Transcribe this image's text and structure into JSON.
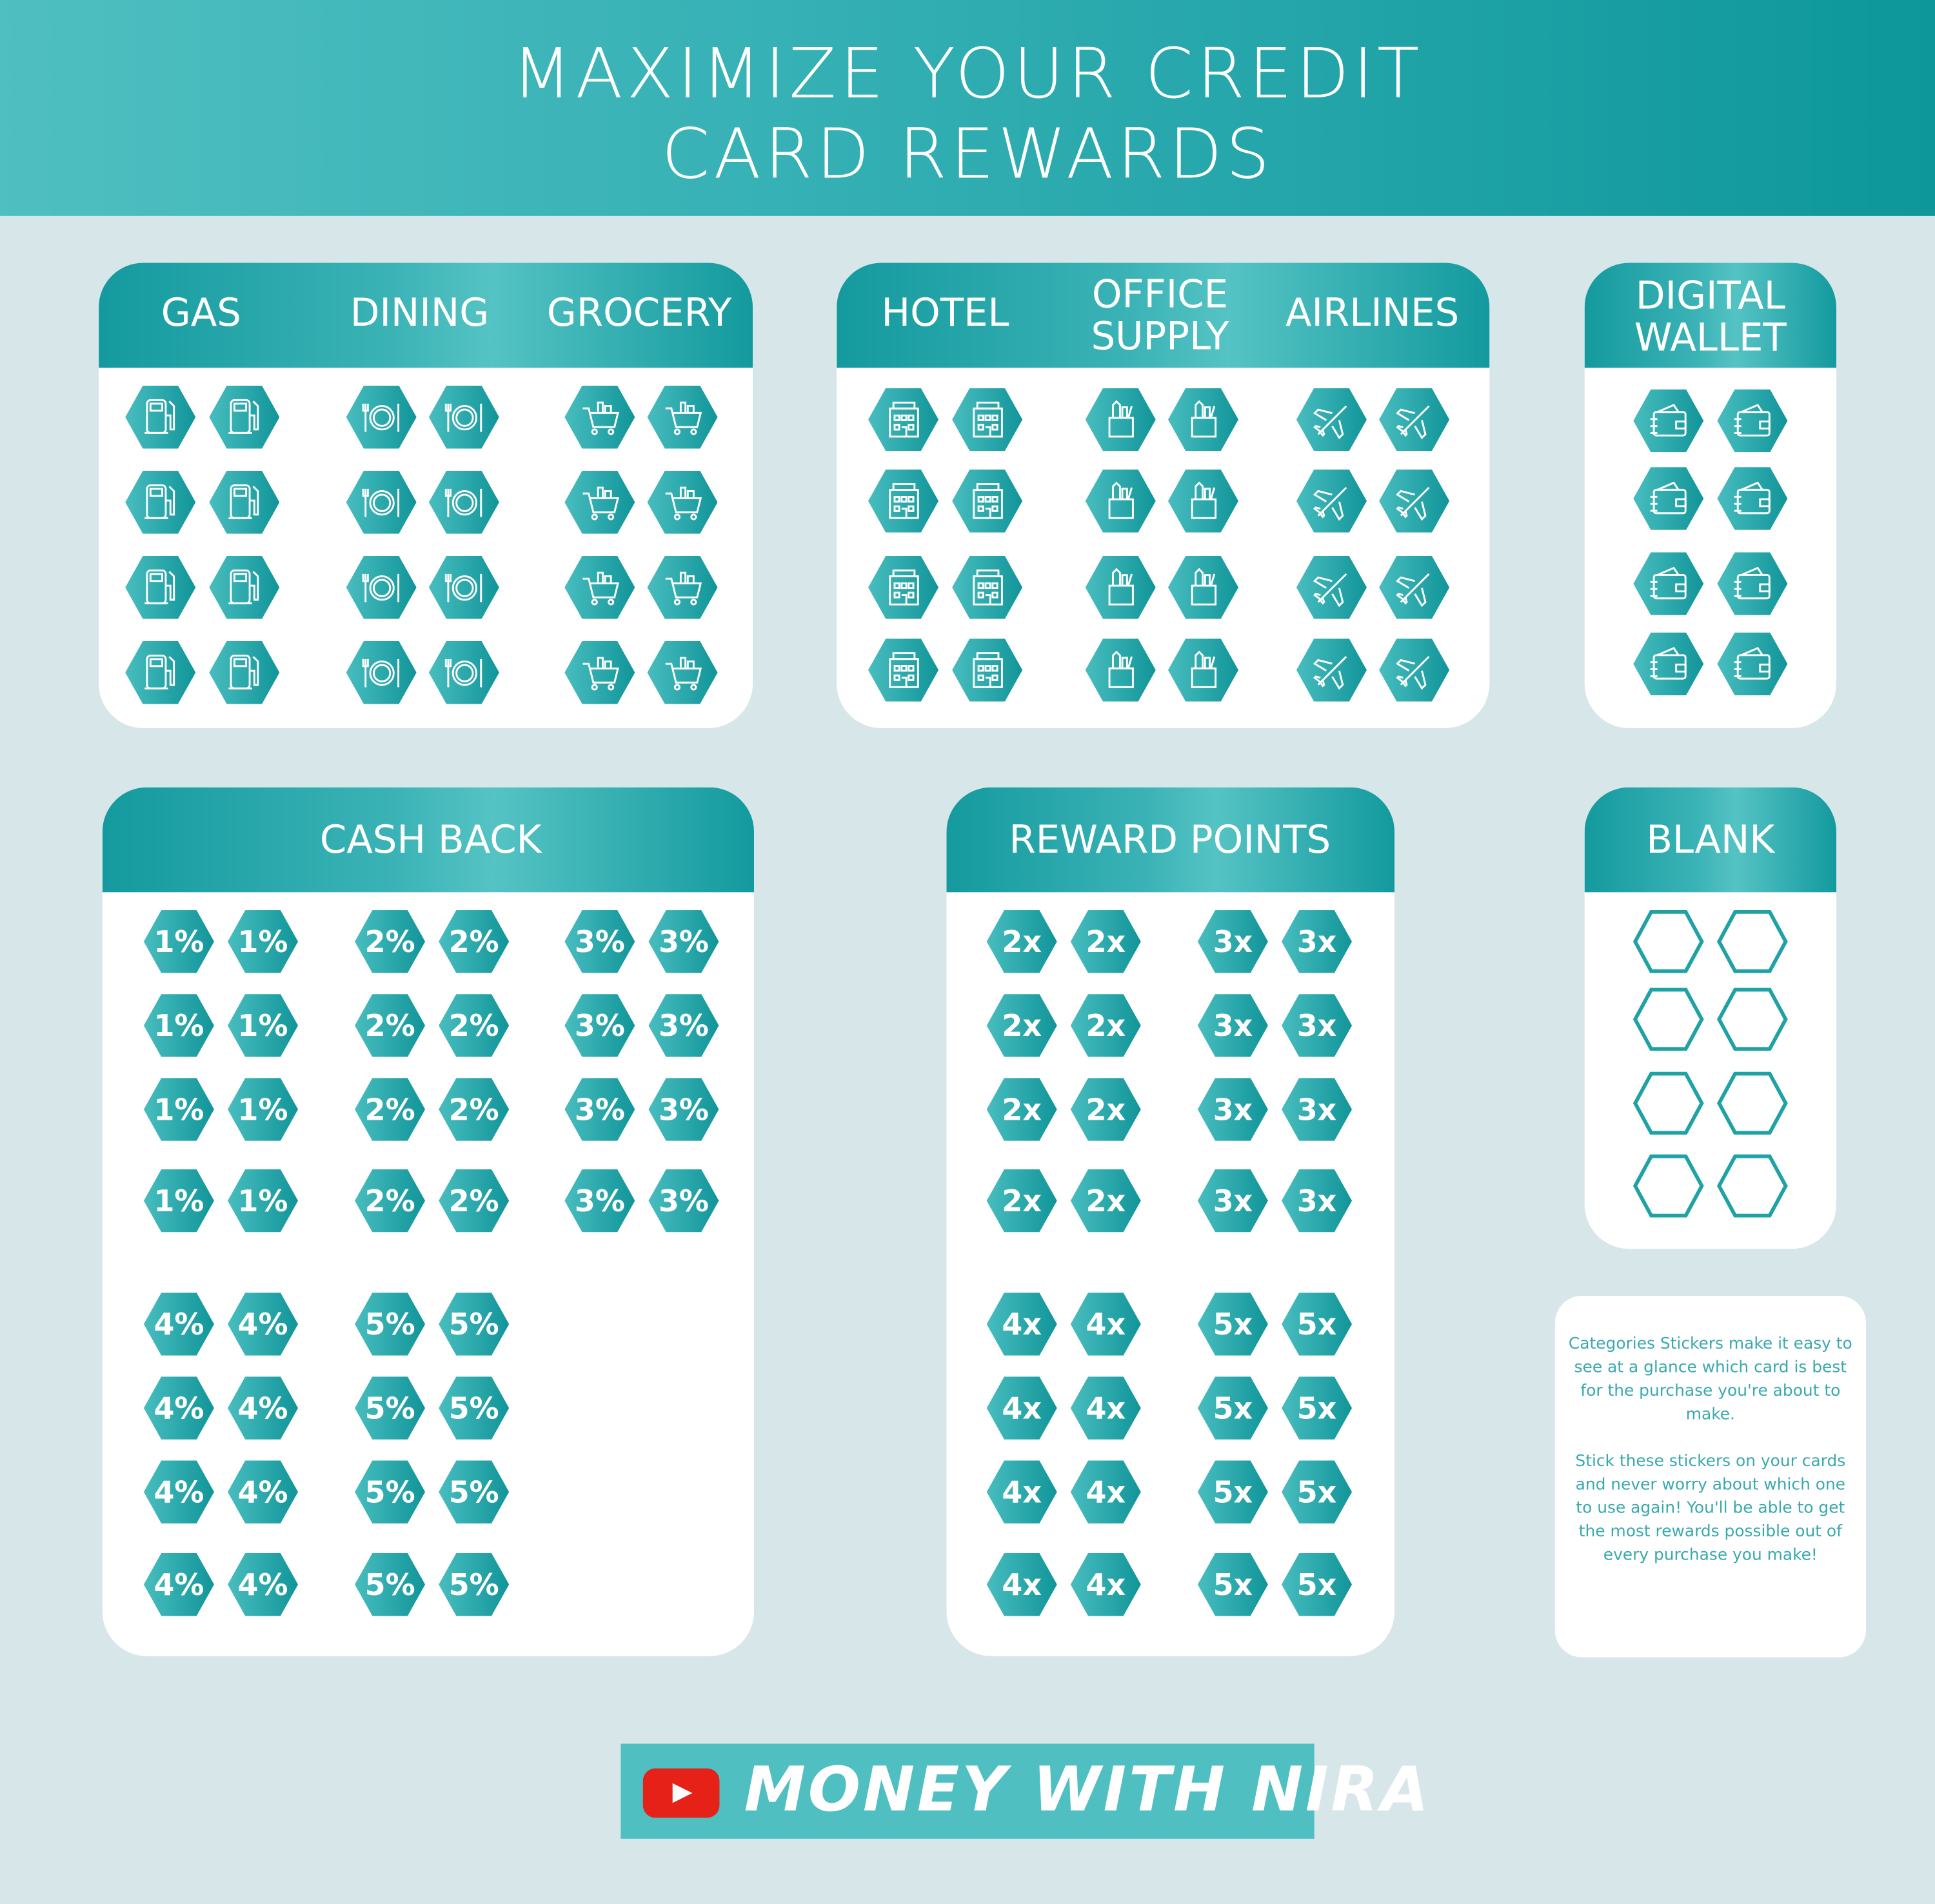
{
  "title": {
    "line1": "MAXIMIZE YOUR CREDIT",
    "line2": "CARD REWARDS"
  },
  "colors": {
    "teal": "#139a9e",
    "teal_light": "#4fbfc1",
    "background": "#d7e6e8",
    "youtube_red": "#e62117"
  },
  "categories_a": {
    "groups": [
      {
        "label": "GAS",
        "icon": "gas-pump-icon"
      },
      {
        "label": "DINING",
        "icon": "plate-fork-knife-icon"
      },
      {
        "label": "GROCERY",
        "icon": "shopping-cart-icon"
      }
    ]
  },
  "categories_b": {
    "groups": [
      {
        "label": "HOTEL",
        "icon": "hotel-building-icon"
      },
      {
        "label": "OFFICE SUPPLY",
        "icon": "pencil-cup-icon"
      },
      {
        "label": "AIRLINES",
        "icon": "airplane-icon"
      }
    ]
  },
  "digital_wallet": {
    "label": "DIGITAL WALLET",
    "icon": "wallet-icon"
  },
  "cash_back": {
    "label": "CASH BACK",
    "values": [
      "1%",
      "2%",
      "3%",
      "4%",
      "5%"
    ]
  },
  "reward_points": {
    "label": "REWARD POINTS",
    "values": [
      "2x",
      "3x",
      "4x",
      "5x"
    ]
  },
  "blank": {
    "label": "BLANK"
  },
  "note": {
    "paragraph1": "Categories Stickers make it easy to see at a glance which card is best for the purchase you're about to make.",
    "paragraph2": "Stick these stickers on your cards and never worry about which one to use again! You'll be able to get the most rewards possible out of every purchase you make!"
  },
  "logo": {
    "text": "MONEY WITH NIRA",
    "icon": "youtube-play-icon"
  }
}
